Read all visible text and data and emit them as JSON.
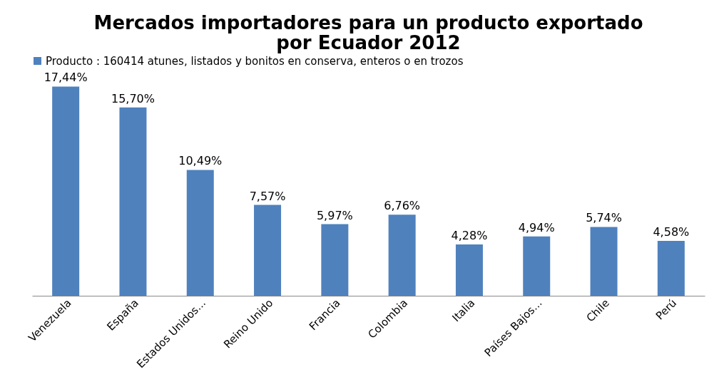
{
  "chart_data": {
    "type": "bar",
    "title": "Mercados importadores para un producto exportado por Ecuador 2012",
    "categories": [
      "Venezuela",
      "España",
      "Estados Unidos...",
      "Reino Unido",
      "Francia",
      "Colombia",
      "Italia",
      "Países Bajos...",
      "Chile",
      "Perú"
    ],
    "series": [
      {
        "name": "Producto : 160414 atunes, listados y bonitos en conserva, enteros o en trozos",
        "color": "#4f81bd",
        "values": [
          17.44,
          15.7,
          10.49,
          7.57,
          5.97,
          6.76,
          4.28,
          4.94,
          5.74,
          4.58
        ],
        "value_labels": [
          "17,44%",
          "15,70%",
          "10,49%",
          "7,57%",
          "5,97%",
          "6,76%",
          "4,28%",
          "4,94%",
          "5,74%",
          "4,58%"
        ]
      }
    ],
    "legend": "top"
  }
}
